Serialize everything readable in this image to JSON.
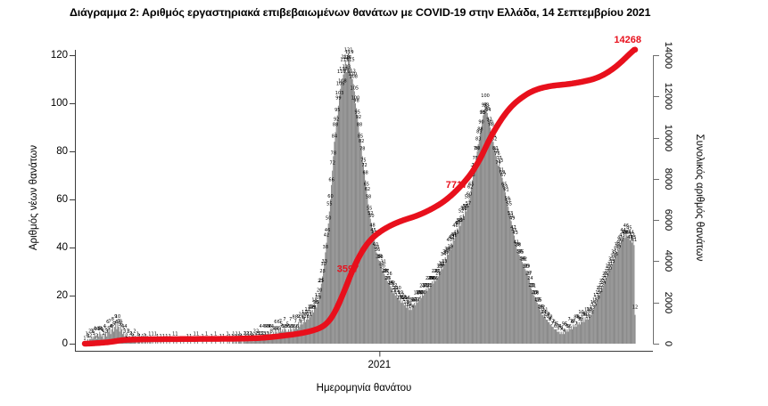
{
  "title": "Διάγραμμα 2: Αριθμός εργαστηριακά επιβεβαιωμένων θανάτων με COVID-19 στην Ελλάδα, 14 Σεπτεμβρίου 2021",
  "axes": {
    "left": {
      "title": "Αριθμός νέων θανάτων",
      "ticks": [
        0,
        20,
        40,
        60,
        80,
        100,
        120
      ]
    },
    "right": {
      "title": "Συνολικός αριθμός θανάτων",
      "ticks": [
        0,
        2000,
        4000,
        6000,
        8000,
        10000,
        12000,
        14000
      ]
    },
    "x": {
      "title": "Ημερομηνία θανάτου",
      "ticks": [
        "2021"
      ]
    }
  },
  "annotations": [
    {
      "label": "3597",
      "value": 3597
    },
    {
      "label": "7717",
      "value": 7717
    },
    {
      "label": "14268",
      "value": 14268
    }
  ],
  "colors": {
    "bar": "#8a8a8a",
    "line": "#e8101c",
    "annotation": "#e8101c",
    "axis": "#3a3a3a",
    "axis_right": "#6e6e6e",
    "bar_label": "#000000",
    "text": "#000000",
    "background": "#ffffff"
  },
  "chart_data": {
    "type": "combo",
    "title": "Διάγραμμα 2: Αριθμός εργαστηριακά επιβεβαιωμένων θανάτων με COVID-19 στην Ελλάδα, 14 Σεπτεμβρίου 2021",
    "xlabel": "Ημερομηνία θανάτου",
    "x_tick_labels": [
      "2021"
    ],
    "left_ylabel": "Αριθμός νέων θανάτων",
    "left_ylim": [
      0,
      125
    ],
    "right_ylabel": "Συνολικός αριθμός θανάτων",
    "right_ylim": [
      0,
      14268
    ],
    "grid": false,
    "legend": "none",
    "final_cumulative_total": 14268,
    "series": [
      {
        "name": "daily_deaths",
        "type": "bar",
        "values": [
          1,
          0,
          1,
          2,
          1,
          2,
          2,
          3,
          2,
          3,
          4,
          3,
          2,
          4,
          3,
          5,
          4,
          3,
          4,
          2,
          4,
          5,
          3,
          6,
          5,
          7,
          4,
          6,
          8,
          5,
          7,
          9,
          6,
          10,
          7,
          5,
          8,
          6,
          4,
          5,
          3,
          4,
          2,
          3,
          2,
          1,
          2,
          1,
          2,
          1,
          2,
          1,
          0,
          1,
          2,
          1,
          0,
          1,
          1,
          0,
          2,
          1,
          0,
          1,
          0,
          1,
          1,
          0,
          1,
          0,
          0,
          1,
          0,
          1,
          0,
          0,
          1,
          0,
          0,
          1,
          0,
          0,
          1,
          0,
          0,
          1,
          0,
          0,
          0,
          1,
          0,
          0,
          1,
          0,
          0,
          0,
          1,
          0,
          0,
          1,
          0,
          0,
          0,
          1,
          0,
          0,
          1,
          0,
          0,
          0,
          1,
          0,
          0,
          1,
          0,
          0,
          0,
          0,
          1,
          0,
          0,
          0,
          1,
          0,
          0,
          0,
          0,
          1,
          0,
          0,
          0,
          1,
          0,
          0,
          0,
          0,
          1,
          0,
          0,
          1,
          0,
          0,
          0,
          1,
          0,
          1,
          0,
          0,
          1,
          1,
          0,
          1,
          1,
          0,
          1,
          1,
          2,
          1,
          0,
          1,
          2,
          1,
          1,
          2,
          1,
          1,
          2,
          1,
          2,
          1,
          2,
          2,
          2,
          2,
          3,
          2,
          4,
          3,
          2,
          4,
          3,
          5,
          4,
          3,
          5,
          4,
          6,
          3,
          4,
          5,
          4,
          6,
          5,
          4,
          6,
          5,
          7,
          5,
          6,
          5,
          7,
          6,
          5,
          5,
          6,
          5,
          7,
          6,
          5,
          8,
          6,
          7,
          8,
          6,
          9,
          7,
          8,
          10,
          8,
          9,
          11,
          9,
          10,
          12,
          10,
          11,
          13,
          12,
          14,
          13,
          15,
          16,
          15,
          17,
          18,
          20,
          23,
          25,
          28,
          30,
          33,
          38,
          42,
          46,
          50,
          55,
          60,
          66,
          72,
          78,
          84,
          88,
          92,
          95,
          99,
          103,
          106,
          110,
          108,
          112,
          115,
          118,
          113,
          116,
          121,
          119,
          115,
          112,
          110,
          108,
          105,
          100,
          98,
          95,
          92,
          88,
          85,
          82,
          78,
          75,
          72,
          68,
          65,
          62,
          58,
          55,
          52,
          50,
          48,
          45,
          43,
          40,
          38,
          36,
          35,
          34,
          33,
          32,
          30,
          31,
          29,
          28,
          27,
          26,
          25,
          26,
          24,
          23,
          22,
          21,
          22,
          20,
          21,
          19,
          20,
          18,
          19,
          17,
          18,
          17,
          16,
          17,
          15,
          16,
          15,
          14,
          15,
          14,
          16,
          15,
          17,
          16,
          18,
          17,
          19,
          18,
          20,
          19,
          21,
          20,
          22,
          21,
          23,
          22,
          24,
          23,
          25,
          24,
          26,
          25,
          27,
          26,
          28,
          27,
          28,
          30,
          29,
          32,
          31,
          34,
          33,
          36,
          35,
          38,
          37,
          40,
          39,
          42,
          41,
          44,
          43,
          46,
          45,
          48,
          47,
          50,
          49,
          52,
          51,
          54,
          53,
          56,
          55,
          58,
          57,
          60,
          62,
          65,
          68,
          70,
          73,
          75,
          78,
          80,
          83,
          85,
          88,
          90,
          93,
          95,
          97,
          100,
          98,
          96,
          94,
          92,
          90,
          88,
          86,
          84,
          82,
          80,
          78,
          76,
          74,
          75,
          73,
          71,
          69,
          67,
          65,
          63,
          61,
          59,
          57,
          55,
          53,
          51,
          49,
          47,
          45,
          43,
          41,
          39,
          38,
          37,
          36,
          35,
          34,
          33,
          32,
          31,
          30,
          29,
          28,
          27,
          24,
          23,
          22,
          21,
          20,
          19,
          18,
          17,
          16,
          15,
          14,
          13,
          12,
          12,
          11,
          11,
          10,
          10,
          9,
          9,
          8,
          8,
          7,
          7,
          6,
          6,
          6,
          5,
          5,
          5,
          4,
          5,
          4,
          5,
          4,
          6,
          5,
          6,
          5,
          7,
          6,
          7,
          6,
          8,
          7,
          8,
          7,
          9,
          8,
          9,
          8,
          10,
          9,
          10,
          9,
          11,
          10,
          11,
          10,
          12,
          11,
          12,
          13,
          14,
          15,
          16,
          17,
          18,
          19,
          20,
          21,
          22,
          23,
          24,
          25,
          26,
          27,
          28,
          29,
          30,
          31,
          32,
          33,
          34,
          35,
          36,
          37,
          38,
          39,
          40,
          41,
          42,
          43,
          44,
          45,
          44,
          46,
          45,
          44,
          45,
          43,
          44,
          42,
          43,
          41,
          12
        ]
      },
      {
        "name": "cumulative_deaths",
        "type": "line",
        "note": "cumulative sum of daily_deaths, normalized so the final point equals 14268",
        "final_value": 14268,
        "annotated_points": [
          3597,
          7717,
          14268
        ]
      }
    ]
  }
}
